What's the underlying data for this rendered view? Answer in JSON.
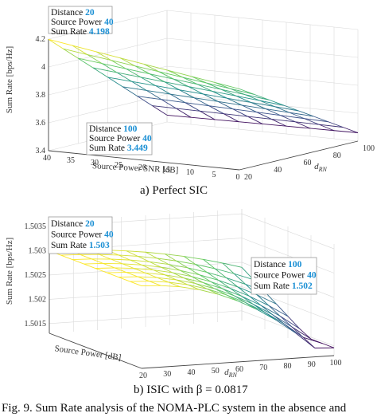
{
  "captions": {
    "a": "a)     Perfect SIC",
    "b": "b)     ISIC with β = 0.0817",
    "fig": "Fig. 9. Sum Rate analysis of the NOMA-PLC system in the absence and"
  },
  "chart_data": [
    {
      "type": "surface",
      "subplot": "a",
      "x_label": "Source Power SNR [dB]",
      "y_label": "d_RN",
      "z_label": "Sum Rate [bps/Hz]",
      "x_ticks": [
        "40",
        "35",
        "30",
        "25",
        "20",
        "15",
        "10",
        "5",
        "0"
      ],
      "y_ticks": [
        "20",
        "40",
        "60",
        "80",
        "100"
      ],
      "z_ticks": [
        "3.4",
        "3.6",
        "3.8",
        "4",
        "4.2"
      ],
      "xlim": [
        0,
        40
      ],
      "ylim": [
        20,
        100
      ],
      "zlim": [
        3.4,
        4.2
      ],
      "corners": {
        "x40_y20": 4.198,
        "x40_y100": 3.449,
        "x0_y20": 3.98,
        "x0_y100": 3.46
      },
      "datatips": [
        {
          "distance": "20",
          "power": "40",
          "rate": "4.198"
        },
        {
          "distance": "100",
          "power": "40",
          "rate": "3.449"
        }
      ],
      "tip_labels": {
        "distance": "Distance",
        "power": "Source Power",
        "rate": "Sum Rate"
      },
      "colormap": [
        "#fde725",
        "#5ec962",
        "#21918c",
        "#3b528b",
        "#440154"
      ]
    },
    {
      "type": "surface",
      "subplot": "b",
      "x_label": "Source Power [dB]",
      "y_label": "d_RN",
      "z_label": "Sum Rate [bps/Hz]",
      "y_ticks": [
        "20",
        "30",
        "40",
        "50",
        "60",
        "70",
        "80",
        "90",
        "100"
      ],
      "z_ticks": [
        "1.5015",
        "1.502",
        "1.5025",
        "1.503",
        "1.5035"
      ],
      "zlim": [
        1.5013,
        1.5036
      ],
      "corners": {
        "near": 1.503,
        "far": 1.502
      },
      "datatips": [
        {
          "distance": "20",
          "power": "40",
          "rate": "1.503"
        },
        {
          "distance": "100",
          "power": "40",
          "rate": "1.502"
        }
      ],
      "tip_labels": {
        "distance": "Distance",
        "power": "Source Power",
        "rate": "Sum Rate"
      },
      "colormap": [
        "#fde725",
        "#5ec962",
        "#21918c",
        "#3b528b",
        "#440154"
      ]
    }
  ]
}
